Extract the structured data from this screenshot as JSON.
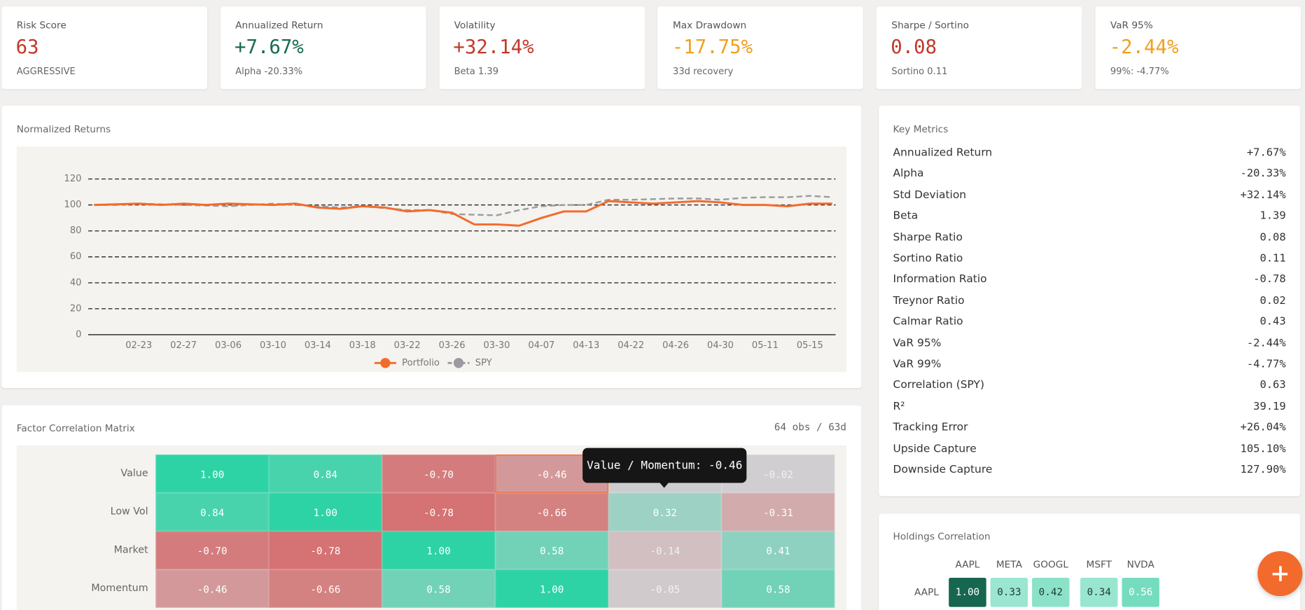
{
  "kpis": [
    {
      "label": "Risk Score",
      "value": "63",
      "sub": "AGGRESSIVE",
      "color": "#c0392b"
    },
    {
      "label": "Annualized Return",
      "value": "+7.67%",
      "sub": "Alpha -20.33%",
      "color": "#17694f"
    },
    {
      "label": "Volatility",
      "value": "+32.14%",
      "sub": "Beta 1.39",
      "color": "#c0392b"
    },
    {
      "label": "Max Drawdown",
      "value": "-17.75%",
      "sub": "33d recovery",
      "color": "#f0a020"
    },
    {
      "label": "Sharpe / Sortino",
      "value": "0.08",
      "sub": "Sortino 0.11",
      "color": "#c0392b"
    },
    {
      "label": "VaR 95%",
      "value": "-2.44%",
      "sub": "99%: -4.77%",
      "color": "#f0a020"
    }
  ],
  "returns_chart": {
    "type": "line",
    "title": "Normalized Returns",
    "categories": [
      null,
      null,
      "02-23",
      null,
      "02-27",
      null,
      "03-06",
      null,
      "03-10",
      null,
      "03-14",
      null,
      "03-18",
      null,
      "03-22",
      null,
      "03-26",
      null,
      "03-30",
      null,
      "04-07",
      null,
      "04-13",
      null,
      "04-22",
      null,
      "04-26",
      null,
      "04-30",
      null,
      "05-11",
      null,
      "05-15",
      null
    ],
    "series": [
      {
        "name": "Portfolio",
        "color": "#f26b2c",
        "dashed": false,
        "values": [
          100,
          100.5,
          101,
          100,
          101,
          100,
          101,
          100.5,
          100,
          101,
          98,
          97,
          99,
          98,
          95,
          96,
          94,
          85,
          85,
          84,
          90,
          95,
          95,
          103,
          102,
          101,
          102,
          103,
          102,
          100,
          100,
          99,
          101,
          101
        ]
      },
      {
        "name": "SPY",
        "color": "#9a9aa0",
        "dashed": true,
        "values": [
          100,
          100,
          101,
          100.5,
          100,
          99.5,
          99,
          100,
          101,
          100,
          99,
          98,
          99,
          97.5,
          96,
          96,
          93,
          92.5,
          92,
          96,
          99,
          100,
          100,
          104,
          104,
          104.5,
          105,
          105,
          104,
          105.5,
          106,
          106,
          107,
          106
        ]
      }
    ],
    "ylim": [
      0,
      126
    ],
    "yticks": [
      0,
      20,
      40,
      60,
      80,
      100,
      120
    ],
    "grid": true
  },
  "key_metrics": {
    "title": "Key Metrics",
    "rows": [
      [
        "Annualized Return",
        "+7.67%"
      ],
      [
        "Alpha",
        "-20.33%"
      ],
      [
        "Std Deviation",
        "+32.14%"
      ],
      [
        "Beta",
        "1.39"
      ],
      [
        "Sharpe Ratio",
        "0.08"
      ],
      [
        "Sortino Ratio",
        "0.11"
      ],
      [
        "Information Ratio",
        "-0.78"
      ],
      [
        "Treynor Ratio",
        "0.02"
      ],
      [
        "Calmar Ratio",
        "0.43"
      ],
      [
        "VaR 95%",
        "-2.44%"
      ],
      [
        "VaR 99%",
        "-4.77%"
      ],
      [
        "Correlation (SPY)",
        "0.63"
      ],
      [
        "R²",
        "39.19"
      ],
      [
        "Tracking Error",
        "+26.04%"
      ],
      [
        "Upside Capture",
        "105.10%"
      ],
      [
        "Downside Capture",
        "127.90%"
      ]
    ]
  },
  "factor_matrix": {
    "title": "Factor Correlation Matrix",
    "meta": "64 obs / 63d",
    "rows": [
      "Value",
      "Low Vol",
      "Market",
      "Momentum"
    ],
    "cells": [
      [
        "1.00",
        "0.84",
        "-0.70",
        "-0.46",
        null,
        "-0.02"
      ],
      [
        "0.84",
        "1.00",
        "-0.78",
        "-0.66",
        "0.32",
        "-0.31"
      ],
      [
        "-0.70",
        "-0.78",
        "1.00",
        "0.58",
        "-0.14",
        "0.41"
      ],
      [
        "-0.46",
        "-0.66",
        "0.58",
        "1.00",
        "-0.05",
        "0.58"
      ]
    ],
    "tooltip": "Value / Momentum: -0.46"
  },
  "holdings": {
    "title": "Holdings Correlation",
    "columns": [
      "AAPL",
      "META",
      "GOOGL",
      "MSFT",
      "NVDA"
    ],
    "rows": [
      "AAPL"
    ],
    "cells": [
      [
        "1.00",
        "0.33",
        "0.42",
        "0.34",
        "0.56"
      ]
    ]
  }
}
